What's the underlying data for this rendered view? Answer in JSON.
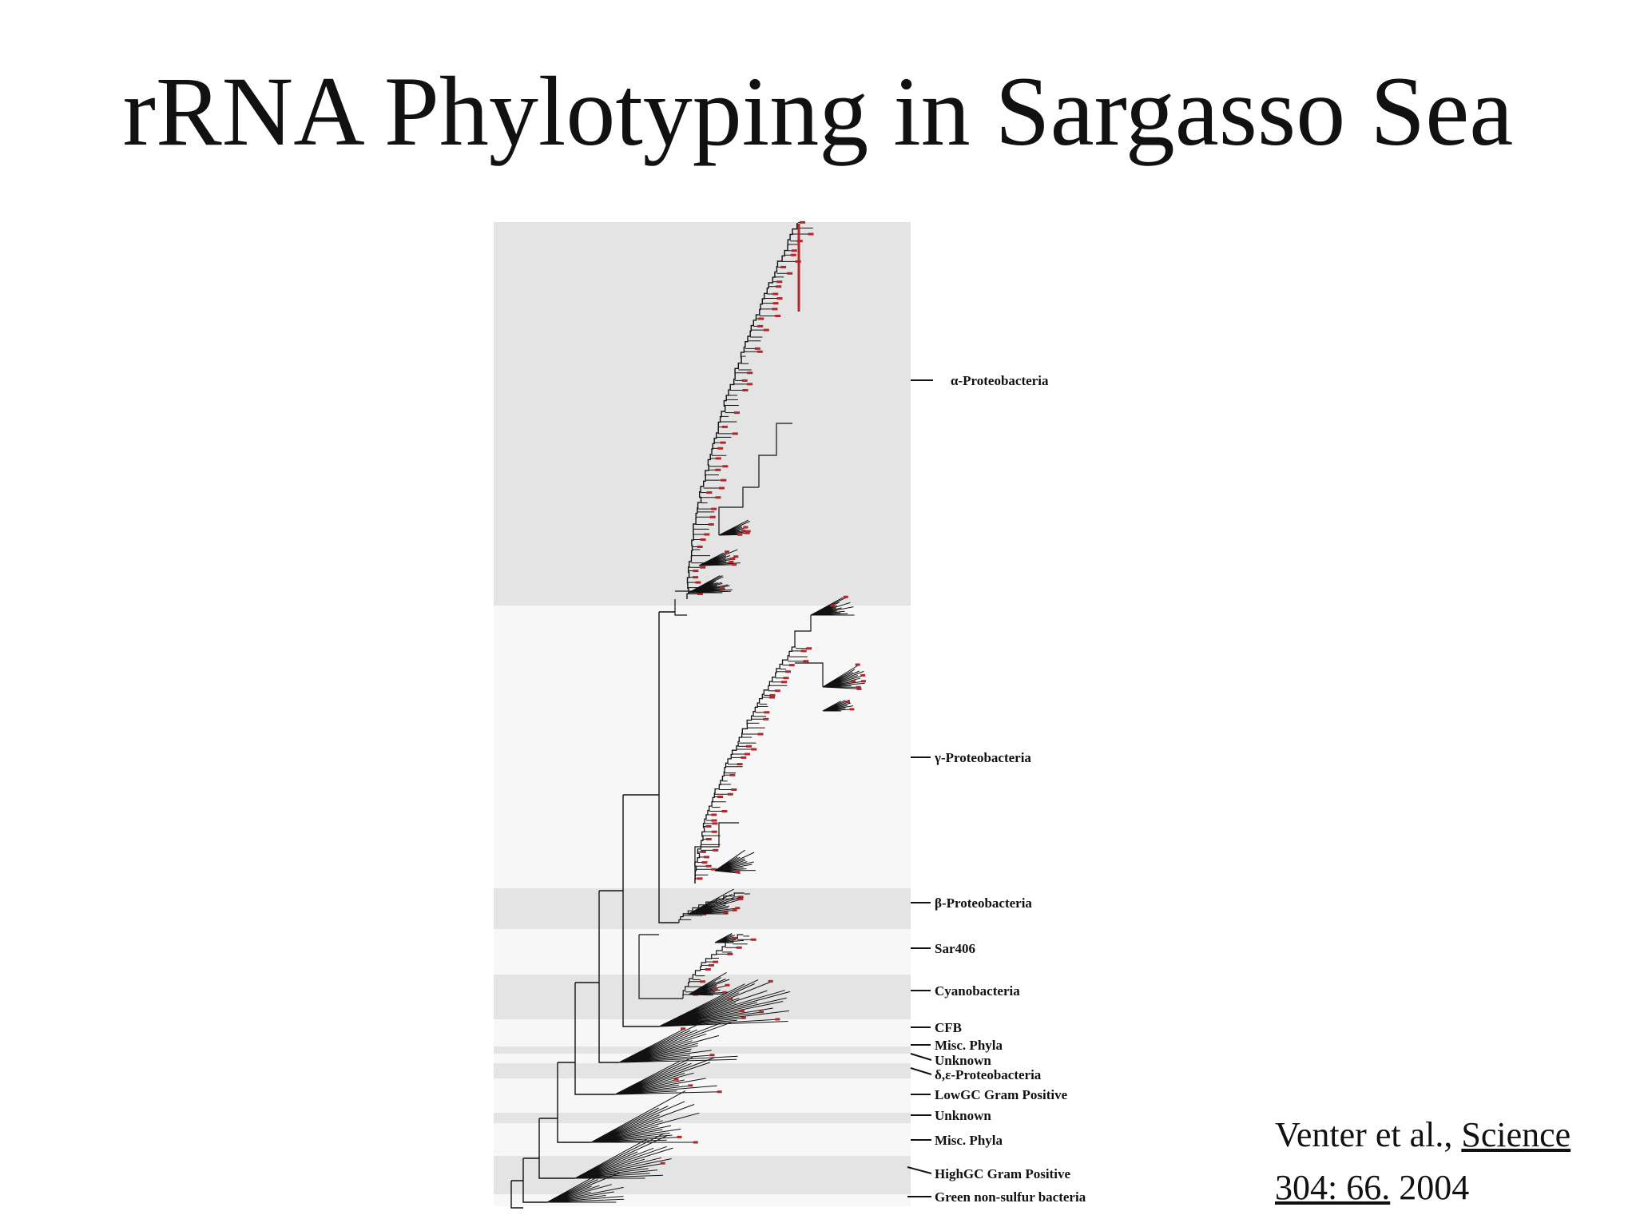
{
  "title": "rRNA Phylotyping in Sargasso Sea",
  "tree": {
    "clades": [
      {
        "label": "α-Proteobacteria",
        "shade": "#e4e4e4"
      },
      {
        "label": "γ-Proteobacteria",
        "shade": "#f7f7f7"
      },
      {
        "label": "β-Proteobacteria",
        "shade": "#e4e4e4"
      },
      {
        "label": "Sar406",
        "shade": "#f7f7f7"
      },
      {
        "label": "Cyanobacteria",
        "shade": "#e4e4e4"
      },
      {
        "label": "CFB",
        "shade": "#f7f7f7"
      },
      {
        "label": "Misc. Phyla",
        "shade": "#e4e4e4"
      },
      {
        "label": "Unknown",
        "shade": "#f7f7f7"
      },
      {
        "label": "δ,ε-Proteobacteria",
        "shade": "#e4e4e4"
      },
      {
        "label": "LowGC Gram Positive",
        "shade": "#f7f7f7"
      },
      {
        "label": "Unknown",
        "shade": "#e4e4e4"
      },
      {
        "label": "Misc. Phyla",
        "shade": "#f7f7f7"
      },
      {
        "label": "HighGC Gram Positive",
        "shade": "#e4e4e4"
      },
      {
        "label": "Green non-sulfur bacteria",
        "shade": "#f7f7f7"
      }
    ],
    "colors": {
      "branch": "#111111",
      "sample": "#b3262b"
    }
  },
  "citation": {
    "authors": "Venter et al., ",
    "journal": "Science",
    "volume_pages": "304: 66.",
    "year": " 2004"
  }
}
